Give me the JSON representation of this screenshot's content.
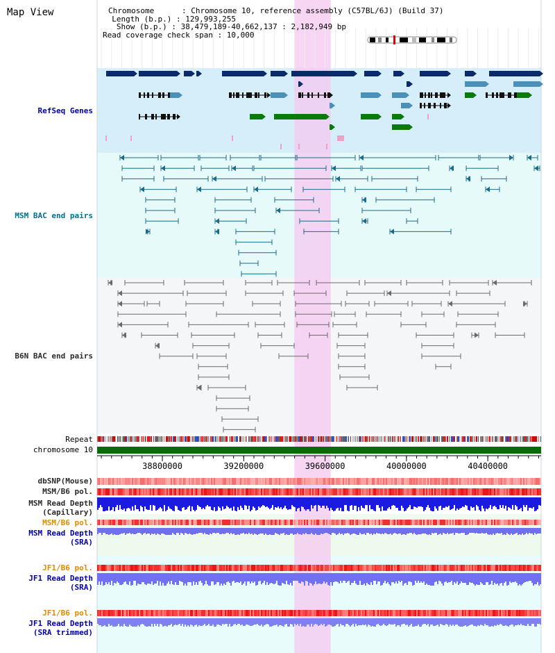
{
  "header": {
    "title": "Map View",
    "chromosome_line": "Chromosome      : Chromosome 10, reference assembly (C57BL/6J) (Build 37)",
    "length_line": "  Length (b.p.) : 129,993,255",
    "show_line": "   Show (b.p.) : 38,479,189-40,662,137 : 2,182,949 bp",
    "coverage_line": "Read coverage check span : 10,000"
  },
  "tracks": {
    "refseq": "RefSeq Genes",
    "msm_bac": "MSM BAC end pairs",
    "b6n_bac": "B6N BAC end pairs",
    "repeat": "Repeat",
    "chromosome": "chromosome 10",
    "dbsnp": "dbSNP(Mouse)",
    "msm_b6_pol_1": "MSM/B6 pol.",
    "msm_depth_cap_1": "MSM Read Depth",
    "msm_depth_cap_2": "(Capillary)",
    "msm_b6_pol_2": "MSM/B6 pol.",
    "msm_depth_sra_1": "MSM Read Depth",
    "msm_depth_sra_2": "(SRA)",
    "jf1_b6_pol_1": "JF1/B6 pol.",
    "jf1_depth_sra_1": "JF1 Read Depth",
    "jf1_depth_sra_2": "(SRA)",
    "jf1_b6_pol_2": "JF1/B6 pol.",
    "jf1_depth_trim_1": "JF1 Read Depth",
    "jf1_depth_trim_2": "(SRA trimmed)"
  },
  "axis": {
    "ticks": [
      {
        "pos": 38800000,
        "label": "38800000"
      },
      {
        "pos": 39200000,
        "label": "39200000"
      },
      {
        "pos": 39600000,
        "label": "39600000"
      },
      {
        "pos": 40000000,
        "label": "40000000"
      },
      {
        "pos": 40400000,
        "label": "40400000"
      }
    ],
    "range": [
      38479189,
      40662137
    ]
  },
  "highlight": {
    "start": 39449000,
    "end": 39628000
  },
  "colors": {
    "refseq_bg": "#d6eefa",
    "msm_bac_bg": "#e6fafa",
    "b6n_bac_bg": "#f4f6f8",
    "highlight": "#f4c8f0",
    "navy": "#0a2a6a",
    "steel": "#4a90b8",
    "green": "#0a7a0a",
    "chrom": "#0a6a0a",
    "depth_blue": "#2020e0",
    "depth_light": "#7878f0",
    "pol_red": "#f03030"
  }
}
